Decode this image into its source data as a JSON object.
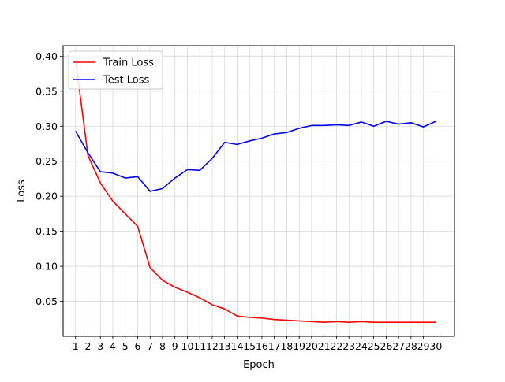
{
  "chart_data": {
    "type": "line",
    "title": "",
    "xlabel": "Epoch",
    "ylabel": "Loss",
    "x": [
      1,
      2,
      3,
      4,
      5,
      6,
      7,
      8,
      9,
      10,
      11,
      12,
      13,
      14,
      15,
      16,
      17,
      18,
      19,
      20,
      21,
      22,
      23,
      24,
      25,
      26,
      27,
      28,
      29,
      30
    ],
    "xlim": [
      0,
      31.5
    ],
    "ylim": [
      0.0,
      0.415
    ],
    "yticks": [
      0.05,
      0.1,
      0.15,
      0.2,
      0.25,
      0.3,
      0.35,
      0.4
    ],
    "grid": true,
    "legend_position": "top-left",
    "series": [
      {
        "name": "Train Loss",
        "color": "#ff0000",
        "values": [
          0.395,
          0.258,
          0.219,
          0.193,
          0.175,
          0.157,
          0.098,
          0.08,
          0.07,
          0.063,
          0.055,
          0.045,
          0.039,
          0.029,
          0.027,
          0.026,
          0.024,
          0.023,
          0.022,
          0.021,
          0.02,
          0.021,
          0.02,
          0.021,
          0.02,
          0.02,
          0.02,
          0.02,
          0.02,
          0.02
        ]
      },
      {
        "name": "Test Loss",
        "color": "#0000ff",
        "values": [
          0.293,
          0.262,
          0.235,
          0.233,
          0.226,
          0.228,
          0.207,
          0.211,
          0.226,
          0.238,
          0.237,
          0.254,
          0.277,
          0.274,
          0.279,
          0.283,
          0.289,
          0.291,
          0.297,
          0.301,
          0.301,
          0.302,
          0.301,
          0.306,
          0.3,
          0.307,
          0.303,
          0.305,
          0.299,
          0.307
        ]
      }
    ]
  }
}
